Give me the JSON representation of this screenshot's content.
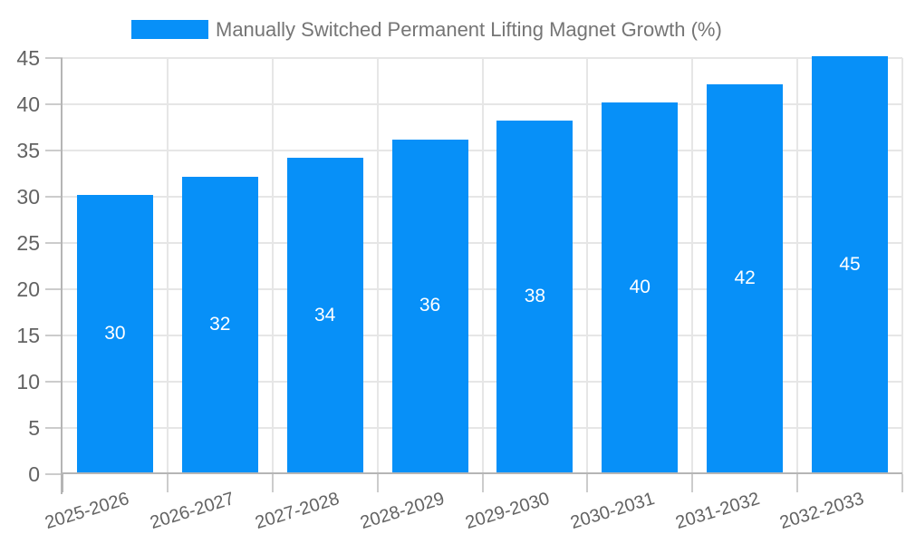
{
  "chart_data": {
    "type": "bar",
    "title": "",
    "legend": {
      "label": "Manually Switched Permanent Lifting Magnet Growth (%)",
      "position": "top"
    },
    "categories": [
      "2025-2026",
      "2026-2027",
      "2027-2028",
      "2028-2029",
      "2029-2030",
      "2030-2031",
      "2031-2032",
      "2032-2033"
    ],
    "values": [
      30,
      32,
      34,
      36,
      38,
      40,
      42,
      45
    ],
    "bar_value_labels": [
      "30",
      "32",
      "34",
      "36",
      "38",
      "40",
      "42",
      "45"
    ],
    "xlabel": "",
    "ylabel": "",
    "ylim": [
      0,
      45
    ],
    "ytick_step": 5,
    "yticks": [
      0,
      5,
      10,
      15,
      20,
      25,
      30,
      35,
      40,
      45
    ],
    "grid": true
  },
  "colors": {
    "bar": "#0790f8",
    "bar_label": "#ffffff",
    "grid_line": "#e6e6e6",
    "axis_line": "#b5b5b5",
    "tick_line": "#cccccc",
    "tick_label": "#636363",
    "legend_label": "#757575",
    "background": "#ffffff"
  }
}
